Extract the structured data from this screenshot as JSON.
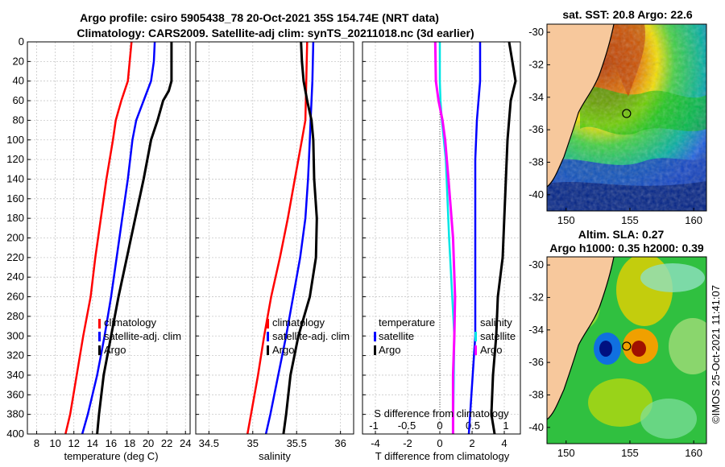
{
  "title": {
    "line1": "Argo profile: csiro 5905438_78 20-Oct-2021 35S 154.74E (NRT data)",
    "line2": "Climatology: CARS2009. Satellite-adj clim: synTS_20211018.nc (3d earlier)"
  },
  "timestamp": "©IMOS 25-Oct-2021 11:41:07",
  "colors": {
    "climatology": "#ff0000",
    "satellite": "#0000ff",
    "argo": "#000000",
    "t_diff": "#00e5e5",
    "s_diff": "#ff00ff",
    "land": "#f7c89c",
    "coast": "#000000"
  },
  "chart_data": [
    {
      "type": "line",
      "name": "temperature-profile",
      "xlabel": "temperature (deg C)",
      "ylabel": "",
      "xlim": [
        7,
        24.5
      ],
      "ylim": [
        0,
        400
      ],
      "xticks": [
        8,
        10,
        12,
        14,
        16,
        18,
        20,
        22,
        24
      ],
      "yticks": [
        0,
        20,
        40,
        60,
        80,
        100,
        120,
        140,
        160,
        180,
        200,
        220,
        240,
        260,
        280,
        300,
        320,
        340,
        360,
        380,
        400
      ],
      "legend": [
        "climatology",
        "satellite-adj. clim",
        "Argo"
      ],
      "series": [
        {
          "name": "climatology",
          "depth": [
            0,
            20,
            40,
            60,
            80,
            100,
            140,
            180,
            220,
            260,
            300,
            340,
            380,
            400
          ],
          "values": [
            18.2,
            18.0,
            17.8,
            17.1,
            16.5,
            16.2,
            15.5,
            14.9,
            14.3,
            13.8,
            13.0,
            12.3,
            11.6,
            11.1
          ]
        },
        {
          "name": "satellite-adj. clim",
          "depth": [
            0,
            20,
            40,
            60,
            80,
            100,
            140,
            180,
            220,
            260,
            300,
            340,
            380,
            400
          ],
          "values": [
            20.7,
            20.6,
            20.3,
            19.5,
            18.7,
            18.3,
            17.8,
            17.2,
            16.6,
            16.0,
            15.3,
            14.5,
            13.5,
            12.9
          ]
        },
        {
          "name": "Argo",
          "depth": [
            0,
            20,
            40,
            50,
            60,
            80,
            100,
            140,
            180,
            220,
            260,
            300,
            340,
            380,
            400
          ],
          "values": [
            22.5,
            22.5,
            22.5,
            22.2,
            21.6,
            21.0,
            20.3,
            19.5,
            18.6,
            17.7,
            16.8,
            16.0,
            15.2,
            14.7,
            14.5
          ]
        }
      ]
    },
    {
      "type": "line",
      "name": "salinity-profile",
      "xlabel": "salinity",
      "ylabel": "",
      "xlim": [
        34.35,
        36.15
      ],
      "ylim": [
        0,
        400
      ],
      "xticks": [
        34.5,
        35,
        35.5,
        36
      ],
      "xticklabels": [
        "34.5",
        "35",
        "35.5",
        "36"
      ],
      "legend": [
        "climatology",
        "satellite-adj. clim",
        "Argo"
      ],
      "series": [
        {
          "name": "climatology",
          "depth": [
            0,
            40,
            80,
            100,
            140,
            180,
            220,
            260,
            300,
            340,
            380,
            400
          ],
          "values": [
            35.62,
            35.61,
            35.6,
            35.56,
            35.48,
            35.4,
            35.31,
            35.21,
            35.13,
            35.06,
            34.98,
            34.94
          ]
        },
        {
          "name": "satellite-adj. clim",
          "depth": [
            0,
            40,
            80,
            100,
            140,
            180,
            220,
            260,
            300,
            340,
            380,
            400
          ],
          "values": [
            35.69,
            35.68,
            35.66,
            35.65,
            35.63,
            35.6,
            35.54,
            35.46,
            35.38,
            35.29,
            35.2,
            35.15
          ]
        },
        {
          "name": "Argo",
          "depth": [
            0,
            20,
            40,
            60,
            80,
            100,
            140,
            180,
            220,
            260,
            300,
            340,
            380,
            400
          ],
          "values": [
            35.55,
            35.56,
            35.58,
            35.62,
            35.67,
            35.69,
            35.7,
            35.73,
            35.72,
            35.65,
            35.52,
            35.43,
            35.38,
            35.35
          ]
        }
      ]
    },
    {
      "type": "line",
      "name": "difference-profile",
      "xlabel": "T difference from climatology",
      "xlabel_top": "S difference from climatology",
      "xlim": [
        -4.8,
        5.0
      ],
      "ylim": [
        0,
        400
      ],
      "xticks": [
        -4,
        -2,
        0,
        2,
        4
      ],
      "xticks_top": [
        -1,
        -0.5,
        0,
        0.5,
        1
      ],
      "xticklabels_top": [
        "-1",
        "-0.5",
        "0",
        "0.5",
        "1"
      ],
      "legend_t": [
        "temperature",
        "satellite",
        "Argo"
      ],
      "legend_s": [
        "salinity",
        "satellite",
        "Argo"
      ],
      "series": [
        {
          "name": "T satellite",
          "depth": [
            0,
            40,
            80,
            120,
            200,
            300,
            400
          ],
          "values": [
            2.5,
            2.5,
            2.3,
            2.2,
            2.2,
            2.2,
            1.8
          ]
        },
        {
          "name": "T Argo",
          "depth": [
            0,
            20,
            40,
            60,
            80,
            100,
            140,
            180,
            220,
            260,
            300,
            340,
            380,
            400
          ],
          "values": [
            4.3,
            4.5,
            4.7,
            4.4,
            4.3,
            4.2,
            4.1,
            4.0,
            3.9,
            3.6,
            3.5,
            3.3,
            3.2,
            3.4
          ]
        },
        {
          "name": "S satellite",
          "depth": [
            0,
            40,
            60,
            80,
            120,
            200,
            300,
            400
          ],
          "values": [
            0.0,
            0.0,
            0.01,
            0.03,
            0.09,
            0.14,
            0.22,
            0.2
          ]
        },
        {
          "name": "S Argo",
          "depth": [
            0,
            40,
            60,
            80,
            100,
            140,
            200,
            260,
            300,
            340,
            400
          ],
          "values": [
            -0.07,
            -0.06,
            -0.02,
            0.04,
            0.08,
            0.13,
            0.2,
            0.23,
            0.22,
            0.2,
            0.2
          ]
        }
      ]
    },
    {
      "type": "heatmap",
      "name": "sst-map",
      "title": "sat. SST: 20.8 Argo: 22.6",
      "xlim": [
        148.5,
        161
      ],
      "ylim": [
        -41,
        -29.5
      ],
      "xticks": [
        150,
        155,
        160
      ],
      "yticks": [
        -30,
        -32,
        -34,
        -36,
        -38,
        -40
      ],
      "argo_position": {
        "lon": 154.74,
        "lat": -35
      }
    },
    {
      "type": "heatmap",
      "name": "sla-map",
      "title_line1": "Altim. SLA: 0.27",
      "title_line2": "Argo h1000: 0.35 h2000: 0.39",
      "xlim": [
        148.5,
        161
      ],
      "ylim": [
        -41,
        -29.5
      ],
      "xticks": [
        150,
        155,
        160
      ],
      "yticks": [
        -30,
        -32,
        -34,
        -36,
        -38,
        -40
      ],
      "argo_position": {
        "lon": 154.74,
        "lat": -35
      }
    }
  ]
}
